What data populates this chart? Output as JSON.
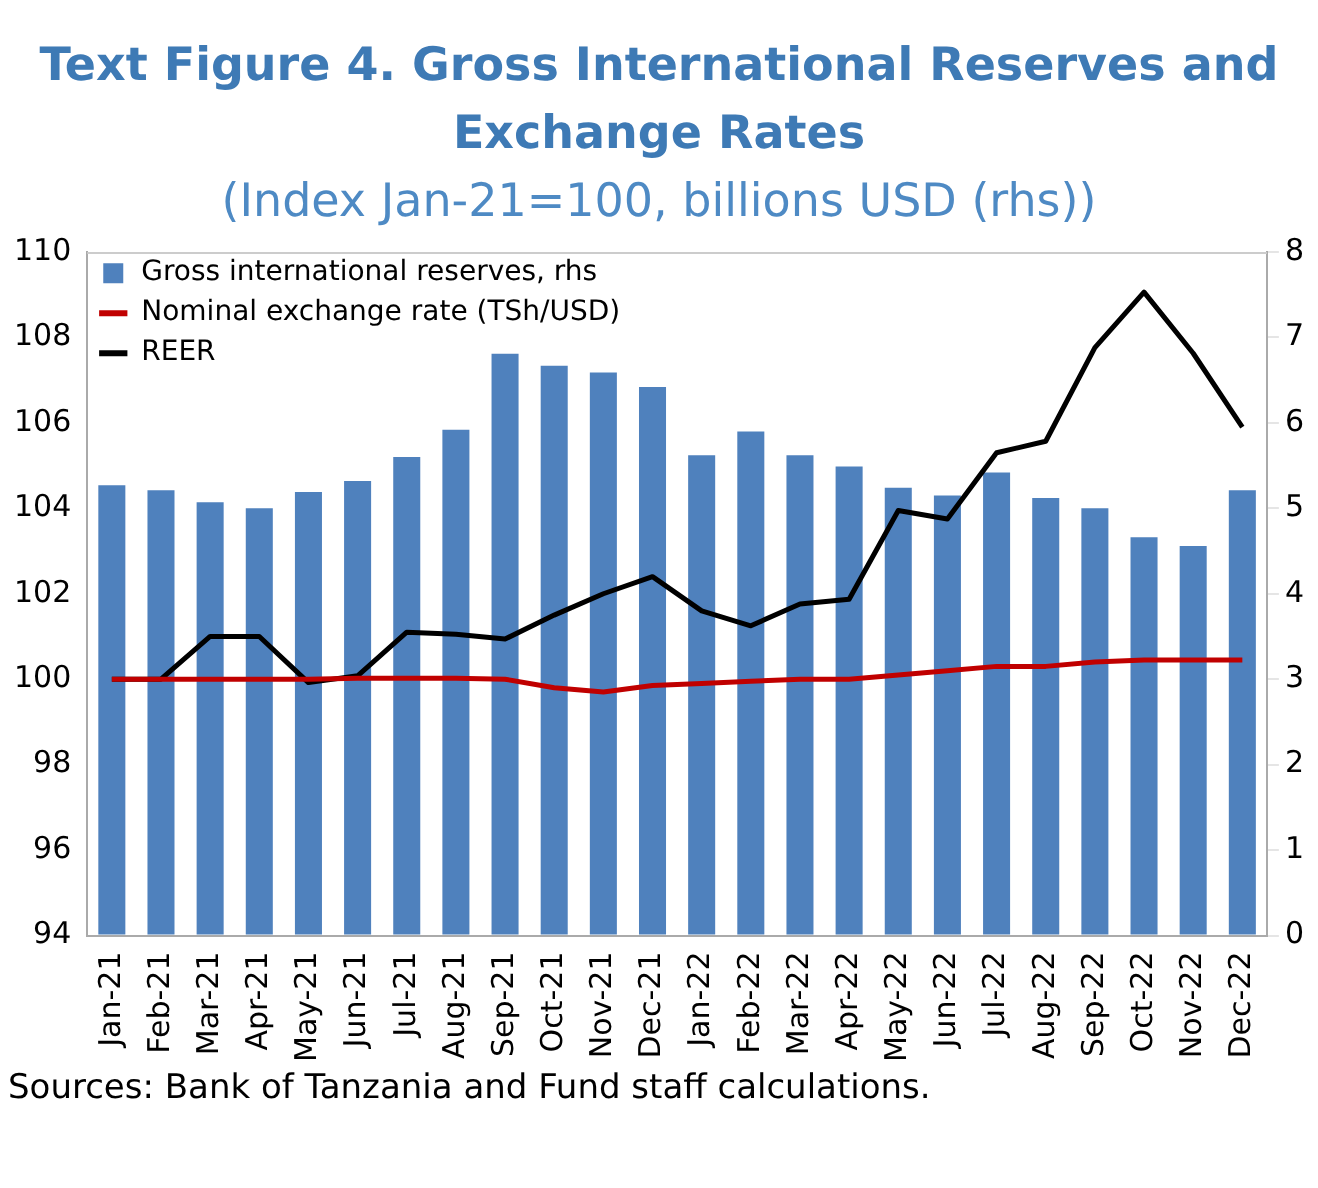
{
  "chart_data": {
    "type": "bar",
    "title": "Text Figure 4. Gross International Reserves and Exchange Rates",
    "subtitle": "(Index Jan-21=100, billions USD (rhs))",
    "categories": [
      "Jan-21",
      "Feb-21",
      "Mar-21",
      "Apr-21",
      "May-21",
      "Jun-21",
      "Jul-21",
      "Aug-21",
      "Sep-21",
      "Oct-21",
      "Nov-21",
      "Dec-21",
      "Jan-22",
      "Feb-22",
      "Mar-22",
      "Apr-22",
      "May-22",
      "Jun-22",
      "Jul-22",
      "Aug-22",
      "Sep-22",
      "Oct-22",
      "Nov-22",
      "Dec-22"
    ],
    "series": [
      {
        "name": "Gross international reserves, rhs",
        "axis": "y2",
        "color": "#4f81bd",
        "values": [
          5.27,
          5.21,
          5.07,
          5.0,
          5.19,
          5.32,
          5.6,
          5.92,
          6.81,
          6.67,
          6.59,
          6.42,
          5.62,
          5.9,
          5.62,
          5.49,
          5.24,
          5.15,
          5.42,
          5.12,
          5.0,
          4.66,
          4.56,
          5.21
        ]
      },
      {
        "name": "Nominal exchange rate (TSh/USD)",
        "type": "line",
        "color": "#c00000",
        "values": [
          100,
          100,
          100,
          100,
          100,
          100.02,
          100.02,
          100.02,
          100.0,
          99.8,
          99.7,
          99.85,
          99.9,
          99.95,
          100.0,
          100.0,
          100.1,
          100.2,
          100.3,
          100.3,
          100.4,
          100.45,
          100.45,
          100.45
        ]
      },
      {
        "name": "REER",
        "type": "line",
        "color": "#000000",
        "values": [
          100,
          100,
          101,
          101,
          99.92,
          100.08,
          101.1,
          101.05,
          100.94,
          101.5,
          102.0,
          102.4,
          101.6,
          101.25,
          101.76,
          101.87,
          103.95,
          103.75,
          105.3,
          105.57,
          107.76,
          109.06,
          107.63,
          105.9
        ]
      }
    ],
    "ylim": [
      94,
      110
    ],
    "yticks": [
      94,
      96,
      98,
      100,
      102,
      104,
      106,
      108,
      110
    ],
    "y2lim": [
      0,
      8
    ],
    "y2ticks": [
      0,
      1,
      2,
      3,
      4,
      5,
      6,
      7,
      8
    ],
    "grid": false,
    "legend": "top left",
    "marker": "none",
    "line_style": "solid",
    "annotations": [
      "Sources: Bank of Tanzania and Fund staff calculations."
    ]
  }
}
